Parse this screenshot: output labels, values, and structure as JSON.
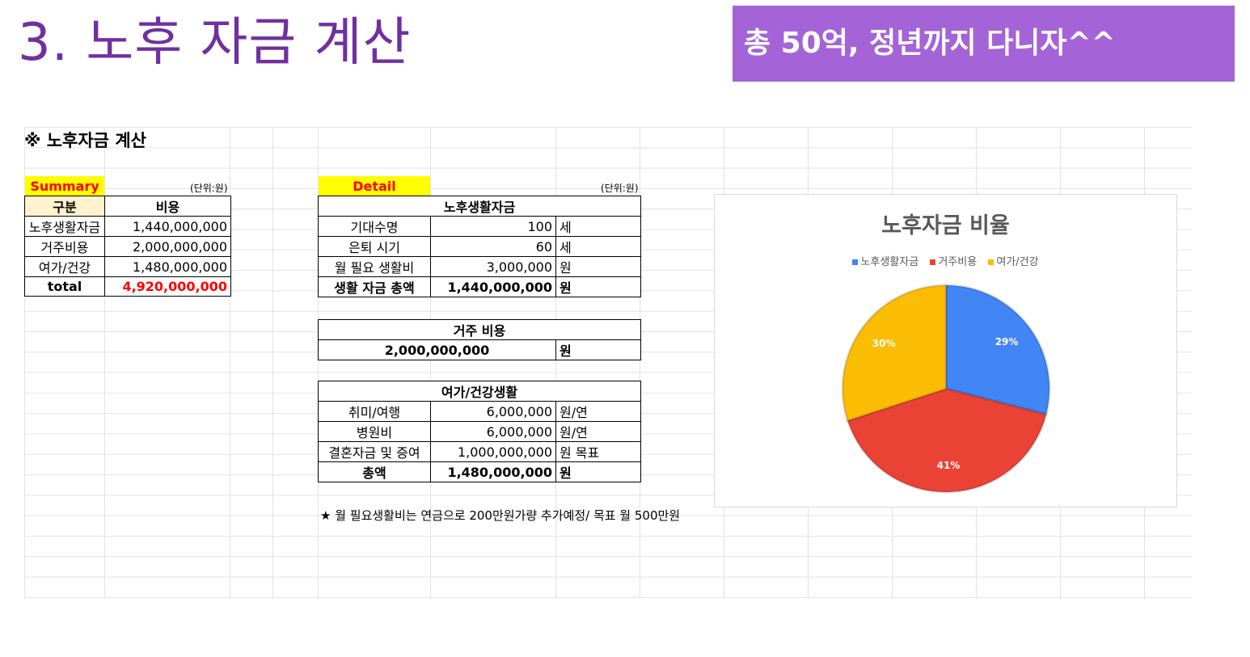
{
  "slide": {
    "title": "3. 노후 자금 계산",
    "banner": "총 50억, 정년까지 다니자^^"
  },
  "sheet": {
    "title": "※ 노후자금 계산",
    "summary": {
      "label": "Summary",
      "unit": "(단위:원)",
      "headers": [
        "구분",
        "비용"
      ],
      "rows": [
        {
          "name": "노후생활자금",
          "value": "1,440,000,000"
        },
        {
          "name": "거주비용",
          "value": "2,000,000,000"
        },
        {
          "name": "여가/건강",
          "value": "1,480,000,000"
        }
      ],
      "total_label": "total",
      "total_value": "4,920,000,000"
    },
    "detail": {
      "label": "Detail",
      "unit": "(단위:원)",
      "living": {
        "header": "노후생활자금",
        "rows": [
          {
            "name": "기대수명",
            "value": "100",
            "unit": "세"
          },
          {
            "name": "은퇴 시기",
            "value": "60",
            "unit": "세"
          },
          {
            "name": "월 필요 생활비",
            "value": "3,000,000",
            "unit": "원"
          }
        ],
        "total": {
          "name": "생활 자금 총액",
          "value": "1,440,000,000",
          "unit": "원"
        }
      },
      "housing": {
        "header": "거주 비용",
        "value": "2,000,000,000",
        "unit": "원"
      },
      "leisure": {
        "header": "여가/건강생활",
        "rows": [
          {
            "name": "취미/여행",
            "value": "6,000,000",
            "unit": "원/연"
          },
          {
            "name": "병원비",
            "value": "6,000,000",
            "unit": "원/연"
          },
          {
            "name": "결혼자금 및 증여",
            "value": "1,000,000,000",
            "unit": "원 목표"
          }
        ],
        "total": {
          "name": "총액",
          "value": "1,480,000,000",
          "unit": "원"
        }
      },
      "note": "★ 월 필요생활비는 연금으로 200만원가량 추가예정/ 목표 월 500만원"
    }
  },
  "chart_data": {
    "type": "pie",
    "title": "노후자금 비율",
    "categories": [
      "노후생활자금",
      "거주비용",
      "여가/건강"
    ],
    "values": [
      29,
      41,
      30
    ],
    "labels": [
      "29%",
      "41%",
      "30%"
    ],
    "colors": [
      "#4285f4",
      "#ea4335",
      "#fbbc04"
    ],
    "legend_position": "top"
  }
}
